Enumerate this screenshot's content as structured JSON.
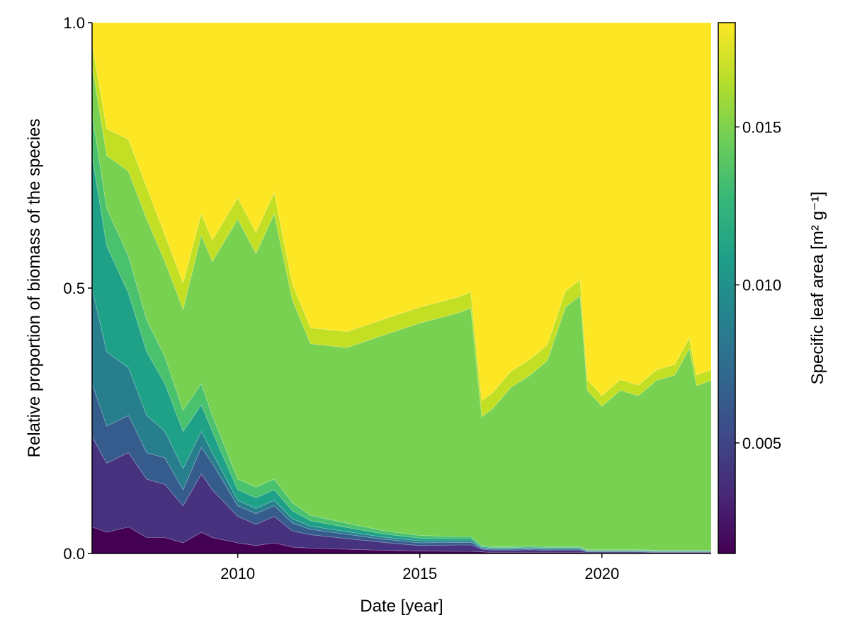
{
  "chart_data": {
    "type": "area",
    "stacked": true,
    "normalized": true,
    "title": "",
    "xlabel": "Date [year]",
    "ylabel": "Relative proportion of biomass of the species",
    "xlim": [
      2006.0,
      2023.0
    ],
    "ylim": [
      0.0,
      1.0
    ],
    "x_ticks": [
      2010,
      2015,
      2020
    ],
    "x_tick_labels": [
      "2010",
      "2015",
      "2020"
    ],
    "y_ticks": [
      0.0,
      0.5,
      1.0
    ],
    "y_tick_labels": [
      "0.0",
      "0.5",
      "1.0"
    ],
    "grid": false,
    "colorbar": {
      "label": "Specific leaf area [m² g⁻¹]",
      "colormap": "viridis",
      "range": [
        0.0015,
        0.0183
      ],
      "ticks": [
        0.005,
        0.01,
        0.015
      ],
      "tick_labels": [
        "0.005",
        "0.010",
        "0.015"
      ]
    },
    "x": [
      2006.0,
      2006.4,
      2007.0,
      2007.5,
      2008.0,
      2008.5,
      2009.0,
      2009.3,
      2010.0,
      2010.5,
      2011.0,
      2011.5,
      2012.0,
      2013.0,
      2014.0,
      2015.0,
      2016.0,
      2016.4,
      2016.7,
      2017.0,
      2017.5,
      2018.0,
      2018.5,
      2019.0,
      2019.4,
      2019.6,
      2020.0,
      2020.5,
      2021.0,
      2021.5,
      2022.0,
      2022.4,
      2022.6,
      2023.0
    ],
    "series": [
      {
        "sla": 0.002,
        "color": "#440154",
        "values": [
          0.05,
          0.04,
          0.05,
          0.03,
          0.03,
          0.02,
          0.04,
          0.03,
          0.02,
          0.015,
          0.02,
          0.012,
          0.01,
          0.008,
          0.006,
          0.005,
          0.004,
          0.004,
          0.003,
          0.002,
          0.002,
          0.002,
          0.002,
          0.002,
          0.002,
          0.001,
          0.001,
          0.001,
          0.001,
          0.001,
          0.001,
          0.001,
          0.001,
          0.001
        ]
      },
      {
        "sla": 0.004,
        "color": "#46327e",
        "values": [
          0.17,
          0.13,
          0.14,
          0.11,
          0.1,
          0.07,
          0.11,
          0.09,
          0.05,
          0.04,
          0.05,
          0.03,
          0.025,
          0.02,
          0.015,
          0.01,
          0.012,
          0.012,
          0.005,
          0.004,
          0.004,
          0.005,
          0.004,
          0.004,
          0.004,
          0.002,
          0.002,
          0.002,
          0.002,
          0.001,
          0.001,
          0.001,
          0.001,
          0.001
        ]
      },
      {
        "sla": 0.006,
        "color": "#365c8d",
        "values": [
          0.1,
          0.07,
          0.07,
          0.05,
          0.05,
          0.03,
          0.05,
          0.05,
          0.02,
          0.02,
          0.02,
          0.015,
          0.01,
          0.008,
          0.006,
          0.005,
          0.005,
          0.005,
          0.002,
          0.002,
          0.002,
          0.002,
          0.002,
          0.002,
          0.002,
          0.001,
          0.001,
          0.001,
          0.001,
          0.001,
          0.001,
          0.001,
          0.001,
          0.001
        ]
      },
      {
        "sla": 0.008,
        "color": "#277f8e",
        "values": [
          0.18,
          0.14,
          0.09,
          0.07,
          0.05,
          0.04,
          0.03,
          0.02,
          0.01,
          0.01,
          0.01,
          0.008,
          0.006,
          0.005,
          0.004,
          0.004,
          0.003,
          0.003,
          0.001,
          0.001,
          0.001,
          0.001,
          0.001,
          0.001,
          0.001,
          0.001,
          0.001,
          0.001,
          0.001,
          0.001,
          0.001,
          0.001,
          0.001,
          0.001
        ]
      },
      {
        "sla": 0.01,
        "color": "#1fa187",
        "values": [
          0.25,
          0.2,
          0.14,
          0.12,
          0.09,
          0.07,
          0.05,
          0.04,
          0.02,
          0.02,
          0.02,
          0.015,
          0.01,
          0.008,
          0.006,
          0.005,
          0.004,
          0.004,
          0.002,
          0.002,
          0.002,
          0.002,
          0.002,
          0.002,
          0.002,
          0.001,
          0.001,
          0.001,
          0.001,
          0.001,
          0.001,
          0.001,
          0.001,
          0.001
        ]
      },
      {
        "sla": 0.012,
        "color": "#4ac16d",
        "values": [
          0.08,
          0.07,
          0.07,
          0.06,
          0.05,
          0.04,
          0.04,
          0.03,
          0.02,
          0.02,
          0.02,
          0.015,
          0.01,
          0.008,
          0.006,
          0.005,
          0.004,
          0.004,
          0.002,
          0.002,
          0.002,
          0.002,
          0.002,
          0.002,
          0.002,
          0.001,
          0.001,
          0.001,
          0.001,
          0.001,
          0.001,
          0.001,
          0.001,
          0.001
        ]
      },
      {
        "sla": 0.0145,
        "color": "#79d151",
        "values": [
          0.09,
          0.1,
          0.16,
          0.19,
          0.18,
          0.19,
          0.28,
          0.29,
          0.49,
          0.44,
          0.5,
          0.38,
          0.32,
          0.33,
          0.37,
          0.4,
          0.42,
          0.43,
          0.24,
          0.26,
          0.3,
          0.32,
          0.35,
          0.45,
          0.47,
          0.3,
          0.27,
          0.3,
          0.29,
          0.32,
          0.33,
          0.38,
          0.31,
          0.32
        ]
      },
      {
        "sla": 0.0165,
        "color": "#c2df23",
        "values": [
          0.04,
          0.05,
          0.06,
          0.06,
          0.05,
          0.05,
          0.04,
          0.04,
          0.04,
          0.04,
          0.04,
          0.03,
          0.03,
          0.03,
          0.03,
          0.03,
          0.03,
          0.03,
          0.03,
          0.03,
          0.03,
          0.03,
          0.03,
          0.03,
          0.03,
          0.02,
          0.02,
          0.02,
          0.02,
          0.02,
          0.02,
          0.02,
          0.02,
          0.02
        ]
      },
      {
        "sla": 0.0182,
        "color": "#fde725",
        "values": [
          0.04,
          0.2,
          0.22,
          0.31,
          0.4,
          0.49,
          0.36,
          0.41,
          0.33,
          0.395,
          0.32,
          0.49,
          0.569,
          0.581,
          0.561,
          0.536,
          0.518,
          0.507,
          0.705,
          0.697,
          0.657,
          0.634,
          0.607,
          0.504,
          0.482,
          0.672,
          0.702,
          0.672,
          0.682,
          0.654,
          0.644,
          0.594,
          0.664,
          0.654
        ]
      }
    ]
  }
}
